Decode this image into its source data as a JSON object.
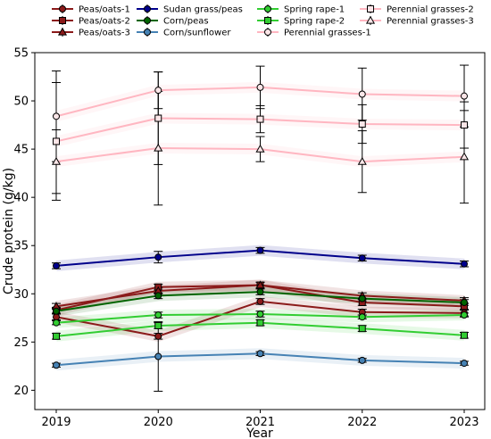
{
  "chart_data": {
    "type": "line",
    "xlabel": "Year",
    "ylabel": "Crude protein (g/kg)",
    "x": [
      2019,
      2020,
      2021,
      2022,
      2023
    ],
    "x_tick_labels": [
      "2019",
      "2020",
      "2021",
      "2022",
      "2023"
    ],
    "ylim": [
      18,
      55
    ],
    "y_ticks": [
      20,
      25,
      30,
      35,
      40,
      45,
      50,
      55
    ],
    "y_tick_labels": [
      "20",
      "25",
      "30",
      "35",
      "40",
      "45",
      "50",
      "55"
    ],
    "legend_position": "top",
    "grid": false,
    "series": [
      {
        "name": "Peas/oats-1",
        "color": "#8b1a1a",
        "marker": "circle",
        "values": [
          27.6,
          25.6,
          29.2,
          28.1,
          28.0
        ],
        "err": [
          0.3,
          0.3,
          0.3,
          0.3,
          0.3
        ]
      },
      {
        "name": "Peas/oats-2",
        "color": "#8b1a1a",
        "marker": "square",
        "values": [
          28.3,
          30.7,
          30.9,
          29.1,
          28.7
        ],
        "err": [
          0.3,
          0.3,
          0.3,
          0.3,
          0.3
        ]
      },
      {
        "name": "Peas/oats-3",
        "color": "#8b1a1a",
        "marker": "triangle",
        "values": [
          28.7,
          30.3,
          30.9,
          29.8,
          29.3
        ],
        "err": [
          0.3,
          0.3,
          0.3,
          0.3,
          0.3
        ]
      },
      {
        "name": "Sudan grass/peas",
        "color": "#00008b",
        "marker": "circle",
        "values": [
          32.9,
          33.8,
          34.5,
          33.7,
          33.1
        ],
        "err": [
          0.3,
          0.6,
          0.3,
          0.3,
          0.3
        ]
      },
      {
        "name": "Corn/peas",
        "color": "#006400",
        "marker": "circle",
        "values": [
          28.2,
          29.8,
          30.2,
          29.5,
          29.1
        ],
        "err": [
          0.3,
          0.3,
          0.3,
          0.3,
          0.3
        ]
      },
      {
        "name": "Corn/sunflower",
        "color": "#4682b4",
        "marker": "circle",
        "values": [
          22.6,
          23.5,
          23.8,
          23.1,
          22.8
        ],
        "err": [
          0.2,
          3.6,
          0.2,
          0.2,
          0.2
        ]
      },
      {
        "name": "Spring rape-1",
        "color": "#32cd32",
        "marker": "circle",
        "values": [
          27.0,
          27.8,
          27.9,
          27.6,
          27.8
        ],
        "err": [
          0.2,
          0.3,
          0.3,
          0.2,
          0.2
        ]
      },
      {
        "name": "Spring rape-2",
        "color": "#32cd32",
        "marker": "square",
        "values": [
          25.6,
          26.7,
          27.0,
          26.4,
          25.7
        ],
        "err": [
          0.3,
          0.3,
          0.3,
          0.3,
          0.3
        ]
      },
      {
        "name": "Perennial grasses-1",
        "color": "#ffb6c1",
        "marker": "circle",
        "values": [
          48.4,
          51.1,
          51.4,
          50.7,
          50.5
        ],
        "err": [
          4.7,
          1.9,
          2.2,
          2.7,
          3.2
        ]
      },
      {
        "name": "Perennial grasses-2",
        "color": "#ffb6c1",
        "marker": "square",
        "values": [
          45.8,
          48.2,
          48.1,
          47.6,
          47.5
        ],
        "err": [
          6.1,
          4.8,
          1.4,
          2.0,
          2.4
        ]
      },
      {
        "name": "Perennial grasses-3",
        "color": "#ffb6c1",
        "marker": "triangle",
        "values": [
          43.7,
          45.1,
          45.0,
          43.7,
          44.2
        ],
        "err": [
          3.3,
          5.9,
          1.3,
          3.2,
          4.8
        ]
      }
    ]
  }
}
